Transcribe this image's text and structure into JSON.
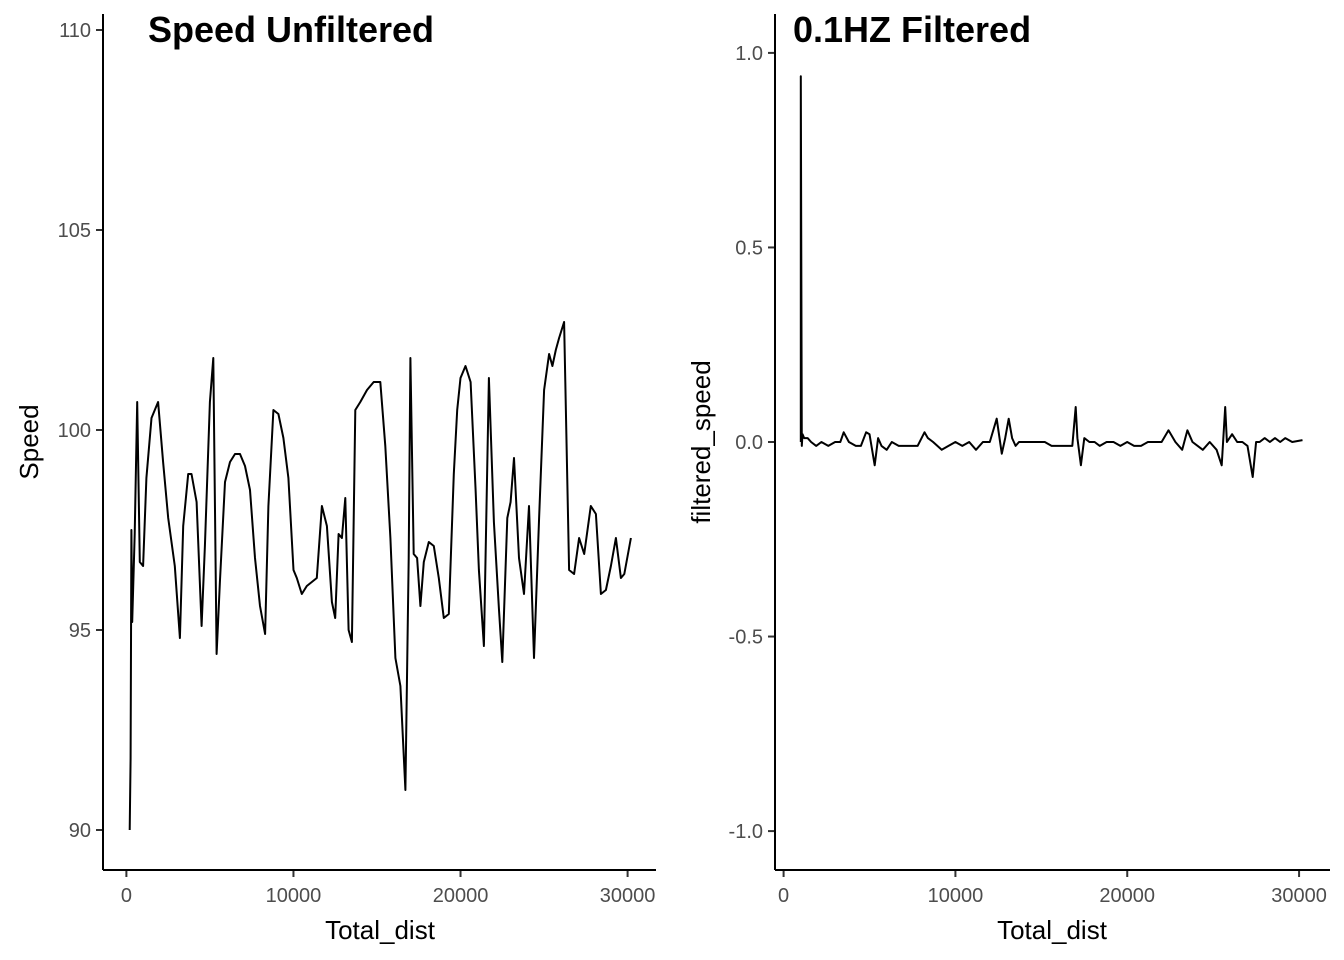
{
  "chart_data": [
    {
      "type": "line",
      "title": "Speed Unfiltered",
      "xlabel": "Total_dist",
      "ylabel": "Speed",
      "xlim": [
        -1400,
        31700
      ],
      "ylim": [
        89.0,
        110.4
      ],
      "xticks": [
        0,
        10000,
        20000,
        30000
      ],
      "xtick_labels": [
        "0",
        "10000",
        "20000",
        "30000"
      ],
      "yticks": [
        90,
        95,
        100,
        105,
        110
      ],
      "ytick_labels": [
        "90",
        "95",
        "100",
        "105",
        "110"
      ],
      "grid": false,
      "legend": "none",
      "series": [
        {
          "x": [
            200,
            250,
            300,
            350,
            500,
            650,
            800,
            1000,
            1200,
            1500,
            1900,
            2200,
            2500,
            2900,
            3200,
            3400,
            3700,
            3900,
            4200,
            4500,
            4700,
            5000,
            5200,
            5400,
            5600,
            5900,
            6200,
            6500,
            6800,
            7100,
            7400,
            7700,
            8000,
            8300,
            8500,
            8800,
            9100,
            9400,
            9700,
            10000,
            10200,
            10500,
            10800,
            11100,
            11400,
            11700,
            12000,
            12300,
            12500,
            12700,
            12900,
            13100,
            13300,
            13500,
            13700,
            14000,
            14400,
            14800,
            15200,
            15500,
            15800,
            16100,
            16400,
            16700,
            16900,
            17000,
            17200,
            17400,
            17600,
            17800,
            18100,
            18400,
            18700,
            19000,
            19300,
            19600,
            19800,
            20000,
            20300,
            20600,
            20900,
            21100,
            21400,
            21700,
            22000,
            22300,
            22500,
            22800,
            23000,
            23200,
            23500,
            23800,
            24100,
            24400,
            24700,
            25000,
            25300,
            25500,
            25700,
            25900,
            26200,
            26500,
            26800,
            27100,
            27400,
            27600,
            27800,
            28100,
            28400,
            28700,
            29000,
            29300,
            29600,
            29800,
            30200
          ],
          "y": [
            90.0,
            91.8,
            97.5,
            95.2,
            97.4,
            100.7,
            96.7,
            96.6,
            98.8,
            100.3,
            100.7,
            99.2,
            97.8,
            96.6,
            94.8,
            97.6,
            98.9,
            98.9,
            98.2,
            95.1,
            97.1,
            100.7,
            101.8,
            94.4,
            96.2,
            98.7,
            99.2,
            99.4,
            99.4,
            99.1,
            98.5,
            96.8,
            95.6,
            94.9,
            98.1,
            100.5,
            100.4,
            99.8,
            98.8,
            96.5,
            96.3,
            95.9,
            96.1,
            96.2,
            96.3,
            98.1,
            97.6,
            95.7,
            95.3,
            97.4,
            97.3,
            98.3,
            95.0,
            94.7,
            100.5,
            100.7,
            101.0,
            101.2,
            101.2,
            99.6,
            97.3,
            94.3,
            93.6,
            91.0,
            96.8,
            101.8,
            96.9,
            96.8,
            95.6,
            96.7,
            97.2,
            97.1,
            96.3,
            95.3,
            95.4,
            98.9,
            100.5,
            101.3,
            101.6,
            101.2,
            98.5,
            96.5,
            94.6,
            101.3,
            97.7,
            95.5,
            94.2,
            97.8,
            98.2,
            99.3,
            96.8,
            95.9,
            98.1,
            94.3,
            97.8,
            101.0,
            101.9,
            101.6,
            102.0,
            102.3,
            102.7,
            96.5,
            96.4,
            97.3,
            96.9,
            97.5,
            98.1,
            97.9,
            95.9,
            96.0,
            96.6,
            97.3,
            96.3,
            96.4,
            97.3
          ]
        }
      ]
    },
    {
      "type": "line",
      "title": "0.1HZ Filtered",
      "xlabel": "Total_dist",
      "ylabel": "filtered_speed",
      "xlim": [
        -500,
        31800
      ],
      "ylim": [
        -1.1,
        1.1
      ],
      "xticks": [
        0,
        10000,
        20000,
        30000
      ],
      "xtick_labels": [
        "0",
        "10000",
        "20000",
        "30000"
      ],
      "yticks": [
        -1.0,
        -0.5,
        0.0,
        0.5,
        1.0
      ],
      "ytick_labels": [
        "-1.0",
        "-0.5",
        "0.0",
        "0.5",
        "1.0"
      ],
      "grid": false,
      "legend": "none",
      "series": [
        {
          "x": [
            1000,
            1000,
            1060,
            1100,
            1200,
            1400,
            1600,
            1900,
            2200,
            2600,
            3000,
            3300,
            3500,
            3800,
            4200,
            4500,
            4800,
            5000,
            5300,
            5500,
            5700,
            6000,
            6300,
            6700,
            7000,
            7400,
            7800,
            8200,
            8400,
            8700,
            9200,
            9600,
            10000,
            10400,
            10800,
            11200,
            11600,
            12000,
            12400,
            12700,
            12900,
            13100,
            13300,
            13500,
            13700,
            14000,
            14300,
            14600,
            14900,
            15200,
            15600,
            16000,
            16400,
            16800,
            17000,
            17100,
            17300,
            17500,
            17800,
            18100,
            18400,
            18800,
            19200,
            19600,
            20000,
            20400,
            20800,
            21200,
            21600,
            22000,
            22400,
            22800,
            23200,
            23500,
            23800,
            24100,
            24400,
            24800,
            25200,
            25500,
            25700,
            25800,
            26100,
            26400,
            26700,
            27000,
            27300,
            27500,
            27700,
            28000,
            28300,
            28600,
            28900,
            29200,
            29600,
            30200
          ],
          "y": [
            0.0,
            0.94,
            -0.01,
            0.02,
            0.01,
            0.01,
            0.0,
            -0.01,
            0.0,
            -0.01,
            0.0,
            0.0,
            0.025,
            0.0,
            -0.01,
            -0.01,
            0.025,
            0.02,
            -0.06,
            0.01,
            -0.01,
            -0.02,
            0.0,
            -0.01,
            -0.01,
            -0.01,
            -0.01,
            0.025,
            0.01,
            0.0,
            -0.02,
            -0.01,
            0.0,
            -0.01,
            0.0,
            -0.02,
            0.0,
            0.0,
            0.06,
            -0.03,
            0.01,
            0.06,
            0.01,
            -0.01,
            0.0,
            0.0,
            0.0,
            0.0,
            0.0,
            0.0,
            -0.01,
            -0.01,
            -0.01,
            -0.01,
            0.09,
            0.01,
            -0.06,
            0.01,
            0.0,
            0.0,
            -0.01,
            0.0,
            0.0,
            -0.01,
            0.0,
            -0.01,
            -0.01,
            0.0,
            0.0,
            0.0,
            0.03,
            0.0,
            -0.02,
            0.03,
            0.0,
            -0.01,
            -0.02,
            0.0,
            -0.02,
            -0.06,
            0.09,
            0.0,
            0.02,
            0.0,
            0.0,
            -0.01,
            -0.09,
            0.0,
            0.0,
            0.01,
            0.0,
            0.01,
            0.0,
            0.01,
            0.0,
            0.005
          ]
        }
      ]
    }
  ]
}
